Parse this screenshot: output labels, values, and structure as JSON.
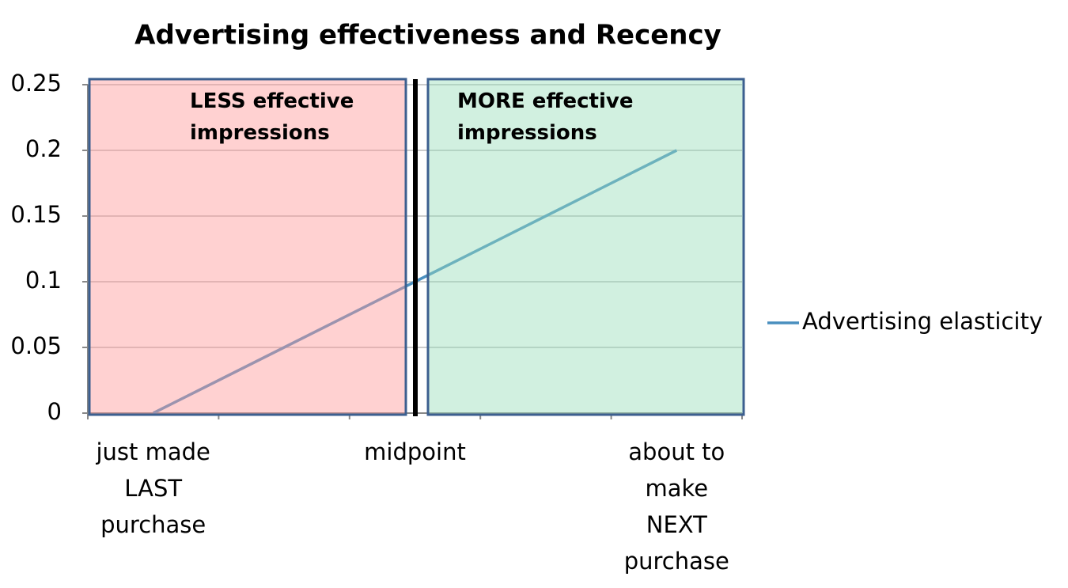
{
  "chart_data": {
    "type": "line",
    "title": "Advertising effectiveness and Recency",
    "categories": [
      "just made\nLAST\npurchase",
      null,
      "midpoint",
      null,
      "about to\nmake\nNEXT\npurchase"
    ],
    "series": [
      {
        "name": "Advertising elasticity",
        "color": "#4a8fbf",
        "values": [
          0,
          0.05,
          0.1,
          0.15,
          0.2
        ]
      }
    ],
    "ylim": [
      0,
      0.25
    ],
    "yticks": [
      0,
      0.05,
      0.1,
      0.15,
      0.2,
      0.25
    ],
    "grid": true,
    "legend": "right",
    "regions": [
      {
        "label": "LESS effective\nimpressions",
        "color": "#ff9999"
      },
      {
        "label": "MORE effective\nimpressions",
        "color": "#99ddbb"
      }
    ]
  }
}
